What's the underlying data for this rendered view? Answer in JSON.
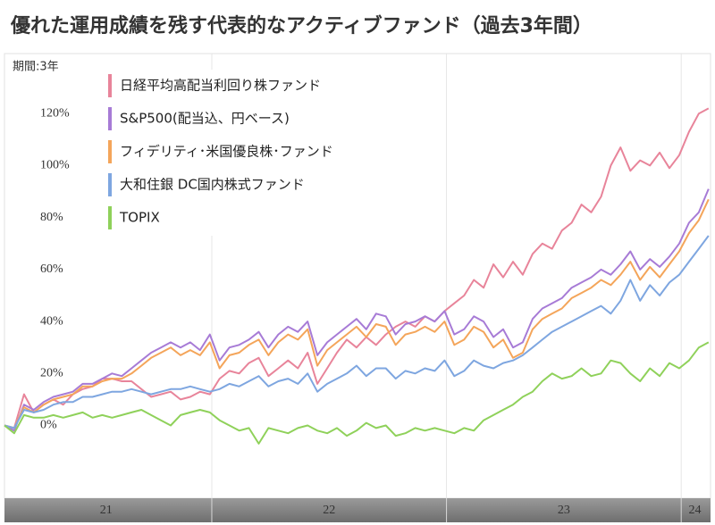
{
  "chart_data": {
    "type": "line",
    "title": "優れた運用成績を残す代表的なアクティブファンド（過去3年間）",
    "period_label": "期間:3年",
    "x": [
      1.4,
      1.9,
      2.4,
      2.9,
      3.4,
      3.9,
      4.4,
      4.9,
      5.4,
      5.9,
      6.4,
      6.9,
      7.4,
      7.9,
      8.4,
      8.9,
      9.4,
      9.9,
      10.4,
      10.9,
      11.4,
      11.9,
      12.4,
      12.9,
      13.4,
      13.9,
      14.4,
      14.9,
      15.4,
      15.9,
      16.4,
      16.9,
      17.4,
      17.9,
      18.4,
      18.9,
      19.4,
      19.9,
      20.4,
      20.9,
      21.4,
      21.9,
      22.4,
      22.9,
      23.4,
      23.9,
      24.4,
      24.9,
      25.4,
      25.9,
      26.4,
      26.9,
      27.4,
      27.9,
      28.4,
      28.9,
      29.4,
      29.9,
      30.4,
      30.9,
      31.4,
      31.9,
      32.4,
      32.9,
      33.4,
      33.9,
      34.4,
      34.9,
      35.4,
      35.9,
      36.4,
      36.9,
      37.4
    ],
    "xlim": [
      1.4,
      37.5
    ],
    "xticks": [
      {
        "value": 6.6,
        "label": "21"
      },
      {
        "value": 18,
        "label": "22"
      },
      {
        "value": 30,
        "label": "23"
      },
      {
        "value": 36.7,
        "label": "24"
      }
    ],
    "x_separators": [
      12,
      24,
      36
    ],
    "ylim": [
      -28,
      140
    ],
    "yticks": [
      {
        "value": 0,
        "label": "0%"
      },
      {
        "value": 20,
        "label": "20%"
      },
      {
        "value": 40,
        "label": "40%"
      },
      {
        "value": 60,
        "label": "60%"
      },
      {
        "value": 80,
        "label": "80%"
      },
      {
        "value": 100,
        "label": "100%"
      },
      {
        "value": 120,
        "label": "120%"
      }
    ],
    "legend": "upper-left",
    "series": [
      {
        "name": "日経平均高配当利回り株ファンド",
        "color": "#e8849a",
        "values": [
          0,
          -1,
          12,
          5,
          8,
          10,
          8,
          12,
          14,
          15,
          18,
          18,
          17,
          17,
          14,
          11,
          12,
          13,
          10,
          11,
          13,
          12,
          18,
          21,
          20,
          24,
          26,
          19,
          22,
          25,
          22,
          28,
          16,
          22,
          28,
          33,
          30,
          34,
          31,
          35,
          38,
          40,
          38,
          42,
          40,
          44,
          47,
          50,
          56,
          53,
          62,
          57,
          63,
          58,
          66,
          70,
          68,
          75,
          78,
          85,
          82,
          88,
          100,
          107,
          98,
          102,
          100,
          105,
          99,
          104,
          113,
          120,
          122
        ]
      },
      {
        "name": "S&P500(配当込、円ベース)",
        "color": "#a77bd6",
        "values": [
          0,
          -2,
          8,
          6,
          9,
          11,
          12,
          13,
          16,
          16,
          18,
          20,
          19,
          22,
          25,
          28,
          30,
          32,
          30,
          32,
          29,
          35,
          25,
          30,
          31,
          33,
          36,
          30,
          35,
          38,
          36,
          40,
          27,
          32,
          35,
          38,
          41,
          37,
          43,
          42,
          35,
          39,
          40,
          42,
          40,
          44,
          35,
          37,
          42,
          40,
          34,
          37,
          30,
          32,
          41,
          45,
          47,
          49,
          53,
          55,
          57,
          60,
          58,
          62,
          67,
          60,
          64,
          61,
          65,
          70,
          78,
          82,
          91
        ]
      },
      {
        "name": "フィデリティ･米国優良株･ファンド",
        "color": "#f4a55a",
        "values": [
          0,
          -1,
          7,
          5,
          8,
          10,
          11,
          12,
          15,
          15,
          17,
          18,
          18,
          20,
          23,
          26,
          28,
          30,
          27,
          29,
          27,
          32,
          22,
          27,
          28,
          31,
          33,
          27,
          32,
          35,
          33,
          37,
          23,
          29,
          32,
          35,
          38,
          34,
          39,
          38,
          31,
          35,
          36,
          38,
          36,
          40,
          31,
          33,
          38,
          36,
          30,
          33,
          26,
          28,
          37,
          41,
          43,
          45,
          49,
          51,
          53,
          56,
          54,
          58,
          63,
          56,
          61,
          57,
          62,
          67,
          74,
          79,
          87
        ]
      },
      {
        "name": "大和住銀 DC国内株式ファンド",
        "color": "#7ea6e0",
        "values": [
          0,
          -1,
          6,
          5,
          6,
          8,
          9,
          9,
          11,
          11,
          12,
          13,
          13,
          14,
          13,
          12,
          13,
          14,
          14,
          15,
          14,
          13,
          14,
          16,
          15,
          17,
          19,
          15,
          17,
          18,
          16,
          20,
          13,
          16,
          18,
          20,
          23,
          19,
          22,
          22,
          18,
          21,
          20,
          22,
          21,
          25,
          19,
          21,
          25,
          23,
          22,
          24,
          25,
          27,
          30,
          33,
          36,
          38,
          40,
          42,
          44,
          46,
          43,
          48,
          56,
          48,
          54,
          50,
          55,
          58,
          63,
          68,
          73
        ]
      },
      {
        "name": "TOPIX",
        "color": "#8fd15a",
        "values": [
          0,
          -3,
          4,
          3,
          3,
          4,
          3,
          4,
          5,
          3,
          4,
          3,
          4,
          5,
          6,
          4,
          2,
          0,
          4,
          5,
          6,
          5,
          2,
          0,
          -2,
          -1,
          -7,
          -1,
          -2,
          -3,
          -1,
          0,
          -2,
          -3,
          -1,
          -4,
          -2,
          1,
          -1,
          0,
          -4,
          -3,
          -1,
          -2,
          -1,
          -2,
          -3,
          -1,
          -2,
          2,
          4,
          6,
          8,
          11,
          13,
          17,
          20,
          18,
          19,
          22,
          19,
          20,
          25,
          24,
          20,
          17,
          22,
          19,
          24,
          22,
          25,
          30,
          32
        ]
      }
    ]
  }
}
